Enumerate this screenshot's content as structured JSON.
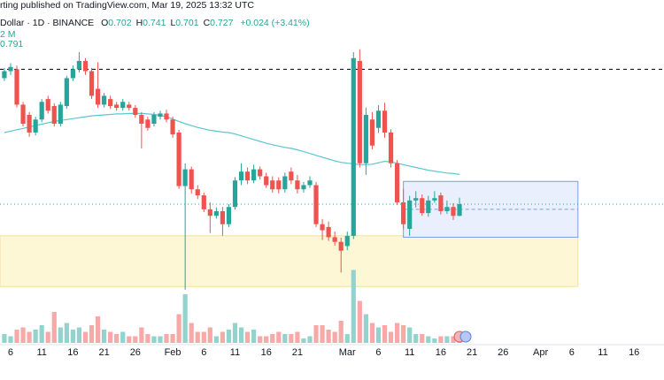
{
  "chart_data": {
    "type": "candlestick",
    "title": "rting published on TradingView.com, Mar 19, 2025 13:32 UTC",
    "symbol": "Dollar · 1D · BINANCE",
    "ohlc_legend": [
      {
        "label": "O",
        "value": 0.702
      },
      {
        "label": "H",
        "value": 0.741
      },
      {
        "label": "L",
        "value": 0.701
      },
      {
        "label": "C",
        "value": 0.727
      }
    ],
    "change": "+0.024 (+3.41%)",
    "up_color": "#26a69a",
    "down_color": "#ef5350",
    "xlim": [
      -0.7,
      105.8
    ],
    "xticks": [
      {
        "value": 1,
        "label": "6"
      },
      {
        "value": 6,
        "label": "11"
      },
      {
        "value": 11,
        "label": "16"
      },
      {
        "value": 16,
        "label": "21"
      },
      {
        "value": 21,
        "label": "26"
      },
      {
        "value": 27,
        "label": "Feb"
      },
      {
        "value": 32,
        "label": "6"
      },
      {
        "value": 37,
        "label": "11"
      },
      {
        "value": 42,
        "label": "16"
      },
      {
        "value": 47,
        "label": "21"
      },
      {
        "value": 55,
        "label": "Mar"
      },
      {
        "value": 60,
        "label": "6"
      },
      {
        "value": 65,
        "label": "11"
      },
      {
        "value": 70,
        "label": "16"
      },
      {
        "value": 75,
        "label": "21"
      },
      {
        "value": 80,
        "label": "26"
      },
      {
        "value": 86,
        "label": "Apr"
      },
      {
        "value": 91,
        "label": "6"
      },
      {
        "value": 96,
        "label": "11"
      },
      {
        "value": 101,
        "label": "16"
      }
    ],
    "ylim": [
      0.52,
      1.09
    ],
    "open": [
      0.998,
      1.013,
      1.017,
      0.941,
      0.919,
      0.881,
      0.909,
      0.953,
      0.938,
      0.9,
      0.938,
      0.998,
      1.017,
      1.035,
      1.013,
      0.975,
      0.941,
      0.953,
      0.941,
      0.934,
      0.941,
      0.934,
      0.919,
      0.909,
      0.9,
      0.915,
      0.922,
      0.909,
      0.881,
      0.766,
      0.802,
      0.759,
      0.746,
      0.716,
      0.702,
      0.712,
      0.684,
      0.721,
      0.778,
      0.797,
      0.778,
      0.802,
      0.787,
      0.778,
      0.778,
      0.759,
      0.797,
      0.778,
      0.759,
      0.768,
      0.768,
      0.684,
      0.678,
      0.656,
      0.646,
      0.637,
      0.659,
      1.035,
      0.815,
      0.909,
      0.891,
      0.928,
      0.881,
      0.815,
      0.731,
      0.674,
      0.735,
      0.74,
      0.708,
      0.735,
      0.746,
      0.712,
      0.721,
      0.702
    ],
    "high": [
      1.02,
      1.03,
      1.025,
      0.947,
      0.925,
      0.915,
      0.953,
      0.96,
      0.944,
      0.947,
      1.003,
      1.025,
      1.054,
      1.041,
      1.02,
      1.032,
      0.966,
      0.96,
      0.947,
      0.953,
      0.947,
      0.94,
      0.925,
      0.915,
      0.925,
      0.928,
      0.93,
      0.915,
      0.887,
      0.815,
      0.808,
      0.768,
      0.752,
      0.731,
      0.72,
      0.721,
      0.727,
      0.785,
      0.815,
      0.806,
      0.812,
      0.808,
      0.795,
      0.787,
      0.785,
      0.795,
      0.806,
      0.79,
      0.775,
      0.787,
      0.775,
      0.695,
      0.69,
      0.668,
      0.655,
      0.668,
      1.054,
      1.06,
      0.935,
      0.925,
      0.94,
      0.945,
      0.888,
      0.822,
      0.76,
      0.745,
      0.755,
      0.748,
      0.745,
      0.755,
      0.752,
      0.735,
      0.729,
      0.741
    ],
    "low": [
      0.992,
      1.005,
      0.935,
      0.894,
      0.872,
      0.875,
      0.903,
      0.922,
      0.894,
      0.894,
      0.932,
      0.992,
      1.01,
      1.005,
      0.953,
      0.934,
      0.935,
      0.932,
      0.928,
      0.928,
      0.928,
      0.913,
      0.847,
      0.885,
      0.894,
      0.909,
      0.903,
      0.87,
      0.76,
      0.543,
      0.75,
      0.738,
      0.71,
      0.665,
      0.696,
      0.659,
      0.678,
      0.715,
      0.768,
      0.77,
      0.772,
      0.78,
      0.762,
      0.752,
      0.75,
      0.752,
      0.77,
      0.75,
      0.752,
      0.762,
      0.678,
      0.65,
      0.648,
      0.638,
      0.58,
      0.628,
      0.652,
      0.806,
      0.79,
      0.845,
      0.88,
      0.87,
      0.806,
      0.725,
      0.674,
      0.659,
      0.72,
      0.702,
      0.7,
      0.73,
      0.705,
      0.706,
      0.693,
      0.701
    ],
    "close": [
      1.013,
      1.022,
      0.941,
      0.9,
      0.881,
      0.909,
      0.947,
      0.928,
      0.9,
      0.941,
      0.998,
      1.017,
      1.035,
      1.013,
      0.96,
      0.941,
      0.96,
      0.938,
      0.934,
      0.947,
      0.934,
      0.919,
      0.9,
      0.891,
      0.919,
      0.922,
      0.909,
      0.877,
      0.766,
      0.802,
      0.759,
      0.746,
      0.716,
      0.702,
      0.712,
      0.684,
      0.721,
      0.778,
      0.797,
      0.778,
      0.802,
      0.787,
      0.768,
      0.759,
      0.759,
      0.787,
      0.778,
      0.759,
      0.768,
      0.778,
      0.684,
      0.671,
      0.656,
      0.646,
      0.627,
      0.659,
      1.041,
      0.815,
      0.919,
      0.853,
      0.928,
      0.881,
      0.815,
      0.731,
      0.684,
      0.735,
      0.74,
      0.708,
      0.735,
      0.74,
      0.712,
      0.721,
      0.702,
      0.727
    ],
    "volume": {
      "legend": "2 M",
      "ylim": [
        0,
        4000
      ],
      "up_color": "#92d3cd",
      "down_color": "#f7a9a7",
      "values": [
        400,
        300,
        600,
        700,
        500,
        600,
        800,
        500,
        1400,
        700,
        900,
        600,
        700,
        500,
        800,
        1200,
        600,
        500,
        400,
        500,
        300,
        300,
        700,
        400,
        300,
        300,
        400,
        400,
        1300,
        2200,
        900,
        500,
        500,
        700,
        300,
        500,
        600,
        900,
        700,
        500,
        600,
        300,
        300,
        400,
        500,
        400,
        400,
        500,
        200,
        300,
        800,
        800,
        600,
        500,
        1000,
        400,
        3300,
        1900,
        1300,
        900,
        700,
        800,
        500,
        900,
        800,
        700,
        400,
        400,
        300,
        200,
        300,
        300,
        300,
        300
      ]
    },
    "ma": {
      "legend": 0.791,
      "color": "#5cc6d0",
      "values": [
        0.881,
        0.884,
        0.887,
        0.89,
        0.893,
        0.896,
        0.899,
        0.902,
        0.905,
        0.907,
        0.909,
        0.911,
        0.913,
        0.915,
        0.917,
        0.918,
        0.919,
        0.92,
        0.921,
        0.921,
        0.922,
        0.922,
        0.922,
        0.921,
        0.92,
        0.918,
        0.915,
        0.91,
        0.905,
        0.9,
        0.896,
        0.892,
        0.889,
        0.886,
        0.884,
        0.882,
        0.881,
        0.878,
        0.874,
        0.87,
        0.866,
        0.862,
        0.858,
        0.855,
        0.852,
        0.849,
        0.847,
        0.844,
        0.84,
        0.836,
        0.832,
        0.828,
        0.824,
        0.82,
        0.817,
        0.815,
        0.814,
        0.812,
        0.812,
        0.813,
        0.816,
        0.819,
        0.818,
        0.815,
        0.812,
        0.809,
        0.806,
        0.803,
        0.8,
        0.798,
        0.796,
        0.794,
        0.793,
        0.791
      ]
    },
    "zones": [
      {
        "x": [
          -0.7,
          92
        ],
        "y": [
          0.55,
          0.659
        ],
        "color": "#fdf7d6",
        "border": "#efe19c"
      },
      {
        "x": [
          64,
          92
        ],
        "y": [
          0.656,
          0.776
        ],
        "color": "#e9effc",
        "border": "#7e9de0"
      }
    ],
    "levels": [
      1.017
    ],
    "price_line_color": "#26a69a"
  }
}
